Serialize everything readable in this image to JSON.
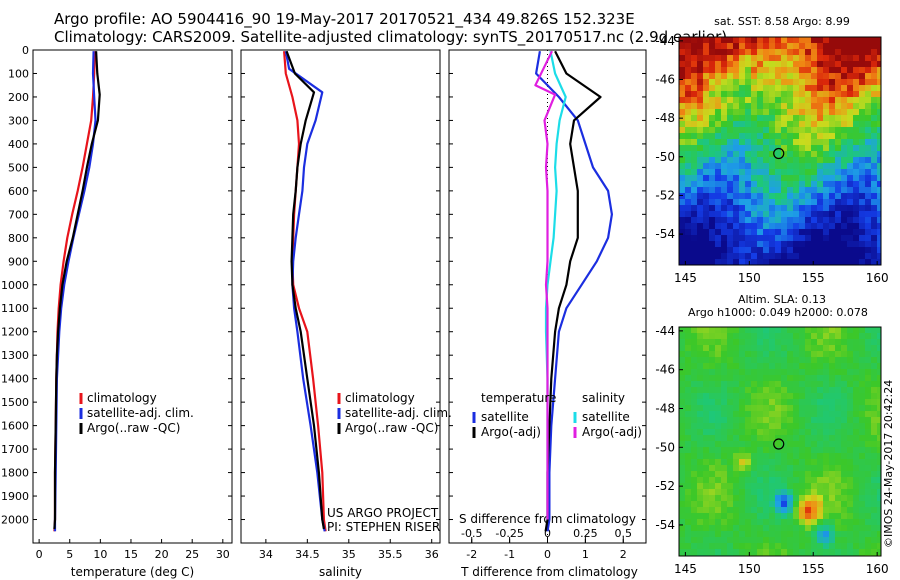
{
  "header": {
    "line1": "Argo profile: AO 5904416_90 19-May-2017 20170521_434 49.826S 152.323E",
    "line2": "Climatology: CARS2009. Satellite-adjusted climatology: synTS_20170517.nc (2.9d earlier)"
  },
  "colors": {
    "climatology": "#e8141b",
    "satellite": "#1b2ee0",
    "argo": "#000000",
    "satellite_s": "#1cdde8",
    "argo_s": "#e01ee0"
  },
  "chart_data": [
    {
      "type": "line",
      "xlabel": "temperature (deg C)",
      "ylabel": "",
      "xlim": [
        -1,
        31.5
      ],
      "ylim": [
        2100,
        0
      ],
      "xticks": [
        "0",
        "5",
        "10",
        "15",
        "20",
        "25",
        "30"
      ],
      "yticks": [
        "0",
        "100",
        "200",
        "300",
        "400",
        "500",
        "600",
        "700",
        "800",
        "900",
        "1000",
        "1100",
        "1200",
        "1300",
        "1400",
        "1500",
        "1600",
        "1700",
        "1800",
        "1900",
        "2000"
      ],
      "legend": [
        "climatology",
        "satellite-adj. clim.",
        "Argo(..raw -QC)"
      ],
      "series": [
        {
          "name": "climatology",
          "color": "climatology",
          "x": [
            9.1,
            9.0,
            8.8,
            8.5,
            7.8,
            7.1,
            6.3,
            5.4,
            4.6,
            4.0,
            3.5,
            3.2,
            3.0,
            2.9,
            2.8,
            2.7,
            2.6,
            2.6,
            2.5
          ],
          "y": [
            5,
            100,
            200,
            300,
            400,
            500,
            600,
            700,
            800,
            900,
            1000,
            1100,
            1200,
            1300,
            1400,
            1600,
            1800,
            2000,
            2050
          ]
        },
        {
          "name": "satellite-adj. clim.",
          "color": "satellite",
          "x": [
            8.9,
            8.8,
            9.0,
            9.2,
            8.8,
            8.2,
            7.4,
            6.5,
            5.6,
            4.8,
            4.1,
            3.6,
            3.3,
            3.1,
            2.9,
            2.8,
            2.7,
            2.6,
            2.6
          ],
          "y": [
            5,
            100,
            200,
            300,
            400,
            500,
            600,
            700,
            800,
            900,
            1000,
            1100,
            1200,
            1300,
            1400,
            1600,
            1800,
            2000,
            2050
          ]
        },
        {
          "name": "Argo(..raw -QC)",
          "color": "argo",
          "x": [
            9.3,
            9.5,
            9.9,
            9.6,
            8.6,
            7.8,
            7.1,
            6.3,
            5.5,
            4.5,
            3.8,
            3.4,
            3.1,
            2.9,
            2.8,
            2.7,
            2.6,
            2.6,
            2.5
          ],
          "y": [
            5,
            100,
            190,
            300,
            400,
            500,
            600,
            700,
            800,
            900,
            1000,
            1100,
            1200,
            1300,
            1400,
            1600,
            1800,
            2000,
            2040
          ]
        }
      ]
    },
    {
      "type": "line",
      "xlabel": "salinity",
      "ylabel": "",
      "xlim": [
        33.7,
        36.1
      ],
      "ylim": [
        2100,
        0
      ],
      "xticks": [
        "34",
        "34.5",
        "35",
        "35.5",
        "36"
      ],
      "legend": [
        "climatology",
        "satellite-adj. clim.",
        "Argo(..raw -QC)"
      ],
      "annotation": [
        "US ARGO PROJECT",
        "PI: STEPHEN RISER"
      ],
      "series": [
        {
          "name": "climatology",
          "color": "climatology",
          "x": [
            34.22,
            34.24,
            34.32,
            34.38,
            34.4,
            34.38,
            34.36,
            34.34,
            34.33,
            34.32,
            34.33,
            34.4,
            34.5,
            34.57,
            34.63,
            34.68,
            34.7,
            34.72
          ],
          "y": [
            5,
            100,
            200,
            300,
            400,
            500,
            600,
            700,
            800,
            900,
            1000,
            1100,
            1200,
            1400,
            1600,
            1800,
            2000,
            2050
          ]
        },
        {
          "name": "satellite-adj. clim.",
          "color": "satellite",
          "x": [
            34.24,
            34.28,
            34.68,
            34.6,
            34.5,
            34.46,
            34.44,
            34.4,
            34.36,
            34.33,
            34.32,
            34.34,
            34.38,
            34.45,
            34.54,
            34.62,
            34.68,
            34.71
          ],
          "y": [
            5,
            80,
            180,
            300,
            400,
            500,
            600,
            700,
            800,
            900,
            1000,
            1100,
            1200,
            1400,
            1600,
            1800,
            2000,
            2050
          ]
        },
        {
          "name": "Argo(..raw -QC)",
          "color": "argo",
          "x": [
            34.25,
            34.35,
            34.58,
            34.48,
            34.42,
            34.38,
            34.36,
            34.33,
            34.32,
            34.31,
            34.32,
            34.36,
            34.42,
            34.5,
            34.58,
            34.64,
            34.68,
            34.7
          ],
          "y": [
            5,
            100,
            180,
            300,
            400,
            500,
            600,
            700,
            800,
            900,
            1000,
            1100,
            1200,
            1400,
            1600,
            1800,
            2000,
            2040
          ]
        }
      ]
    },
    {
      "type": "line",
      "xlabel": "T difference from climatology",
      "xlabel2": "S difference from climatology",
      "xlim": [
        -2.6,
        2.6
      ],
      "x2lim": [
        -0.65,
        0.65
      ],
      "ylim": [
        2100,
        0
      ],
      "xticks": [
        "-2",
        "-1",
        "0",
        "1",
        "2"
      ],
      "x2ticks": [
        "-0.5",
        "-0.25",
        "0",
        "0.25",
        "0.5"
      ],
      "legend_t_title": "temperature",
      "legend_s_title": "salinity",
      "legend_t": [
        "satellite",
        "Argo(-adj)"
      ],
      "legend_s": [
        "satellite",
        "Argo(-adj)"
      ],
      "series": [
        {
          "name": "satellite",
          "color": "satellite",
          "axis": "T",
          "x": [
            -0.2,
            -0.3,
            0.3,
            0.8,
            1.0,
            1.2,
            1.6,
            1.7,
            1.6,
            1.3,
            0.9,
            0.5,
            0.3,
            0.2,
            0.1,
            0.05,
            0.05,
            0.0
          ],
          "y": [
            5,
            100,
            200,
            300,
            400,
            500,
            600,
            700,
            800,
            900,
            1000,
            1100,
            1200,
            1400,
            1600,
            1800,
            2000,
            2050
          ]
        },
        {
          "name": "Argo(-adj)",
          "color": "argo",
          "axis": "T",
          "x": [
            0.2,
            0.5,
            1.4,
            0.7,
            0.6,
            0.7,
            0.8,
            0.8,
            0.8,
            0.6,
            0.5,
            0.3,
            0.2,
            0.1,
            0.05,
            0.0,
            0.0,
            -0.05
          ],
          "y": [
            5,
            100,
            200,
            300,
            400,
            500,
            600,
            700,
            800,
            900,
            1000,
            1100,
            1200,
            1400,
            1600,
            1800,
            2000,
            2050
          ]
        },
        {
          "name": "satellite",
          "color": "satellite_s",
          "axis": "S",
          "x": [
            0.02,
            0.05,
            0.12,
            0.08,
            0.06,
            0.05,
            0.06,
            0.05,
            0.04,
            0.02,
            0.0,
            -0.01,
            -0.01,
            0.0,
            0.0,
            0.0,
            0.0
          ],
          "y": [
            5,
            100,
            200,
            300,
            400,
            500,
            600,
            700,
            800,
            900,
            1000,
            1100,
            1200,
            1400,
            1600,
            1800,
            2000
          ]
        },
        {
          "name": "Argo(-adj)",
          "color": "argo_s",
          "axis": "S",
          "x": [
            0.03,
            -0.08,
            0.05,
            -0.02,
            0.0,
            -0.01,
            0.0,
            0.0,
            0.0,
            0.0,
            -0.01,
            0.0,
            0.0,
            0.0,
            0.0,
            0.0,
            0.0
          ],
          "y": [
            5,
            150,
            190,
            300,
            400,
            500,
            600,
            700,
            800,
            900,
            1000,
            1100,
            1200,
            1400,
            1600,
            1800,
            2000
          ]
        }
      ]
    },
    {
      "type": "heatmap",
      "title": "sat. SST: 8.58 Argo: 8.99",
      "xlim": [
        144.5,
        160.3
      ],
      "ylim": [
        -55.6,
        -43.8
      ],
      "xticks": [
        "145",
        "150",
        "155",
        "160"
      ],
      "yticks": [
        "-44",
        "-46",
        "-48",
        "-50",
        "-52",
        "-54"
      ],
      "marker": {
        "lon": 152.3,
        "lat": -49.83
      }
    },
    {
      "type": "heatmap",
      "title": "Altim. SLA: 0.13",
      "subtitle": "Argo h1000: 0.049 h2000: 0.078",
      "xlim": [
        144.5,
        160.3
      ],
      "ylim": [
        -55.6,
        -43.8
      ],
      "xticks": [
        "145",
        "150",
        "155",
        "160"
      ],
      "yticks": [
        "-44",
        "-46",
        "-48",
        "-50",
        "-52",
        "-54"
      ],
      "marker": {
        "lon": 152.3,
        "lat": -49.83
      },
      "credit": "©IMOS 24-May-2017 20:42:24"
    }
  ]
}
